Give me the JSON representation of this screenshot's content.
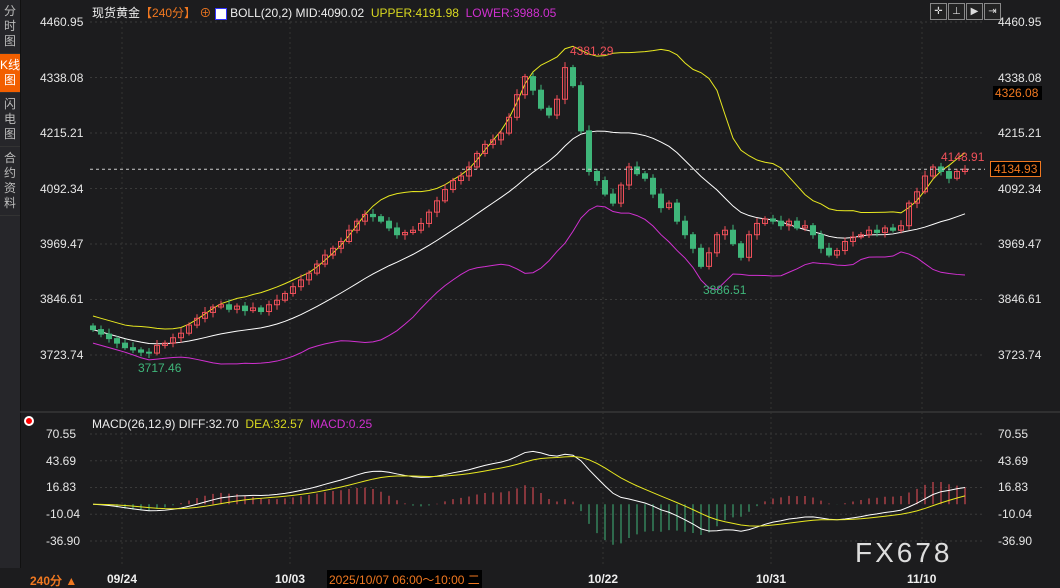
{
  "sidebar": {
    "items": [
      "分时图",
      "K线图",
      "闪电图",
      "合约资料"
    ],
    "active": 1
  },
  "header": {
    "symbol": "现货黄金",
    "period": "【240分】",
    "indicator": "BOLL(20,2)",
    "mid": "MID:4090.02",
    "upper": "UPPER:4191.98",
    "lower": "LOWER:3988.05"
  },
  "macd_header": {
    "name": "MACD(26,12,9)",
    "diff": "DIFF:32.70",
    "dea": "DEA:32.57",
    "macd": "MACD:0.25"
  },
  "toolbar": [
    "crosshair",
    "zoom-range",
    "play",
    "jump-end"
  ],
  "footer": {
    "period": "240分 ▲",
    "cursor_time": "2025/10/07 06:00～10:00 二",
    "watermark": "FX678"
  },
  "colors": {
    "up": "#f0505a",
    "down": "#3fb67a",
    "mid": "#ffffff",
    "upper": "#e8e820",
    "lower": "#d030d0",
    "accent": "#f07820"
  },
  "chart_data": [
    {
      "type": "candlestick",
      "title": "现货黄金",
      "ylim": [
        3723.74,
        4460.95
      ],
      "y_ticks": [
        "4460.95",
        "4338.08",
        "4215.21",
        "4092.34",
        "3969.47",
        "3846.61",
        "3723.74"
      ],
      "x_ticks": [
        "09/24",
        "10/03",
        "10/22",
        "10/31",
        "11/10"
      ],
      "closes": [
        3780,
        3770,
        3760,
        3750,
        3740,
        3735,
        3730,
        3728,
        3745,
        3750,
        3762,
        3772,
        3790,
        3805,
        3818,
        3830,
        3835,
        3825,
        3832,
        3822,
        3828,
        3820,
        3835,
        3845,
        3860,
        3875,
        3890,
        3905,
        3925,
        3945,
        3960,
        3975,
        4000,
        4020,
        4035,
        4030,
        4020,
        4005,
        3990,
        3995,
        4000,
        4015,
        4040,
        4065,
        4090,
        4110,
        4120,
        4140,
        4170,
        4190,
        4200,
        4215,
        4250,
        4300,
        4340,
        4310,
        4270,
        4255,
        4290,
        4360,
        4320,
        4220,
        4130,
        4110,
        4080,
        4060,
        4100,
        4140,
        4125,
        4115,
        4080,
        4050,
        4060,
        4020,
        3990,
        3960,
        3920,
        3950,
        3990,
        4000,
        3970,
        3940,
        3990,
        4015,
        4025,
        4020,
        4010,
        4020,
        4005,
        4010,
        3990,
        3960,
        3945,
        3955,
        3975,
        3985,
        3990,
        4000,
        3995,
        4005,
        4000,
        4010,
        4060,
        4085,
        4120,
        4140,
        4130,
        4115,
        4130,
        4135
      ],
      "annotations": {
        "high": "4381.29",
        "low": "3886.51",
        "recent_high": "4148.91",
        "first_low": "3717.46"
      },
      "last_price": "4134.93",
      "marker_price": "4326.08"
    },
    {
      "type": "line+bar",
      "name": "MACD(26,12,9)",
      "ylim": [
        -36.9,
        70.55
      ],
      "y_ticks": [
        "70.55",
        "43.69",
        "16.83",
        "-10.04",
        "-36.90"
      ]
    }
  ]
}
